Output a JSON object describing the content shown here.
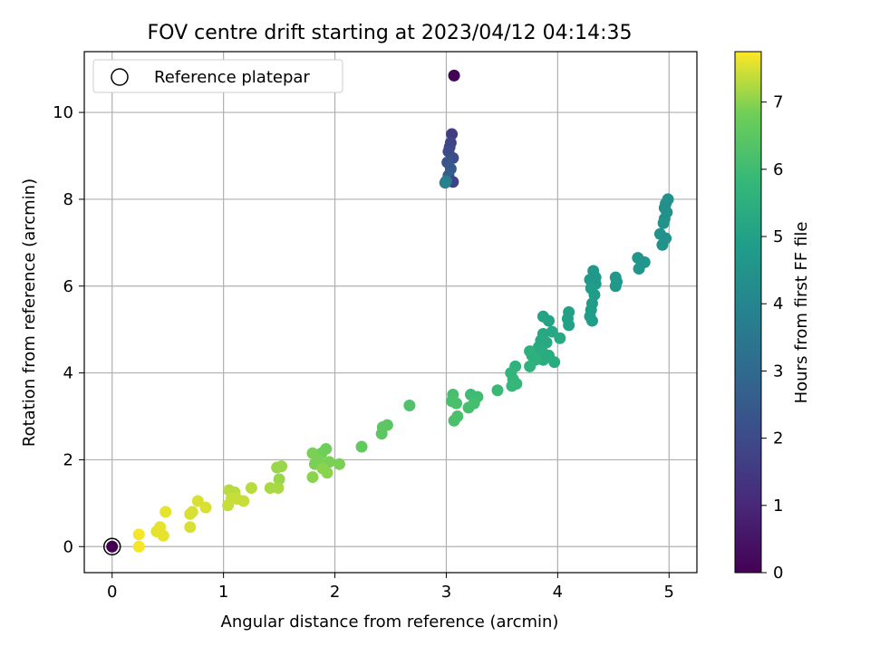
{
  "chart_data": {
    "type": "scatter",
    "title": "FOV centre drift starting at 2023/04/12 04:14:35",
    "xlabel": "Angular distance from reference (arcmin)",
    "ylabel": "Rotation from reference (arcmin)",
    "xlim": [
      -0.25,
      5.25
    ],
    "ylim": [
      -0.6,
      11.4
    ],
    "xticks": [
      0,
      1,
      2,
      3,
      4,
      5
    ],
    "yticks": [
      0,
      2,
      4,
      6,
      8,
      10
    ],
    "grid": true,
    "legend": {
      "position": "top-left",
      "entries": [
        "Reference platepar"
      ]
    },
    "colorbar": {
      "label": "Hours from first FF file",
      "min": 0,
      "max": 7.75,
      "ticks": [
        0,
        1,
        2,
        3,
        4,
        5,
        6,
        7
      ],
      "colormap": "viridis"
    },
    "reference_point": {
      "x": 0,
      "y": 0
    },
    "points": [
      {
        "x": 0,
        "y": 0,
        "t": 0.0
      },
      {
        "x": 3.07,
        "y": 10.85,
        "t": 0.1
      },
      {
        "x": 3.05,
        "y": 9.5,
        "t": 1.6
      },
      {
        "x": 3.04,
        "y": 9.3,
        "t": 1.8
      },
      {
        "x": 3.03,
        "y": 9.2,
        "t": 1.9
      },
      {
        "x": 3.02,
        "y": 9.1,
        "t": 2.0
      },
      {
        "x": 3.06,
        "y": 8.95,
        "t": 2.1
      },
      {
        "x": 3.01,
        "y": 8.85,
        "t": 2.3
      },
      {
        "x": 3.04,
        "y": 8.7,
        "t": 2.4
      },
      {
        "x": 3.02,
        "y": 8.55,
        "t": 2.6
      },
      {
        "x": 3.06,
        "y": 8.4,
        "t": 1.7
      },
      {
        "x": 3.0,
        "y": 8.42,
        "t": 3.5
      },
      {
        "x": 2.99,
        "y": 8.38,
        "t": 3.8
      },
      {
        "x": 4.99,
        "y": 8.0,
        "t": 4.4
      },
      {
        "x": 4.97,
        "y": 7.9,
        "t": 4.4
      },
      {
        "x": 4.96,
        "y": 7.8,
        "t": 4.3
      },
      {
        "x": 4.98,
        "y": 7.7,
        "t": 4.4
      },
      {
        "x": 4.96,
        "y": 7.55,
        "t": 4.4
      },
      {
        "x": 4.95,
        "y": 7.45,
        "t": 4.5
      },
      {
        "x": 4.92,
        "y": 7.2,
        "t": 4.5
      },
      {
        "x": 4.97,
        "y": 7.1,
        "t": 4.4
      },
      {
        "x": 4.94,
        "y": 6.95,
        "t": 4.5
      },
      {
        "x": 4.78,
        "y": 6.55,
        "t": 4.6
      },
      {
        "x": 4.72,
        "y": 6.65,
        "t": 4.6
      },
      {
        "x": 4.73,
        "y": 6.4,
        "t": 4.6
      },
      {
        "x": 4.52,
        "y": 6.2,
        "t": 4.7
      },
      {
        "x": 4.53,
        "y": 6.1,
        "t": 4.7
      },
      {
        "x": 4.52,
        "y": 6.0,
        "t": 4.7
      },
      {
        "x": 4.32,
        "y": 6.35,
        "t": 4.7
      },
      {
        "x": 4.34,
        "y": 6.2,
        "t": 4.7
      },
      {
        "x": 4.29,
        "y": 6.15,
        "t": 4.7
      },
      {
        "x": 4.34,
        "y": 6.05,
        "t": 4.7
      },
      {
        "x": 4.3,
        "y": 5.95,
        "t": 4.8
      },
      {
        "x": 4.33,
        "y": 5.8,
        "t": 4.8
      },
      {
        "x": 4.31,
        "y": 5.6,
        "t": 4.8
      },
      {
        "x": 4.3,
        "y": 5.45,
        "t": 4.8
      },
      {
        "x": 4.29,
        "y": 5.3,
        "t": 4.8
      },
      {
        "x": 4.31,
        "y": 5.2,
        "t": 4.9
      },
      {
        "x": 4.1,
        "y": 5.4,
        "t": 5.0
      },
      {
        "x": 4.09,
        "y": 5.25,
        "t": 5.0
      },
      {
        "x": 4.1,
        "y": 5.1,
        "t": 5.0
      },
      {
        "x": 3.87,
        "y": 5.3,
        "t": 5.1
      },
      {
        "x": 3.92,
        "y": 5.2,
        "t": 5.1
      },
      {
        "x": 3.95,
        "y": 4.95,
        "t": 5.2
      },
      {
        "x": 3.87,
        "y": 4.9,
        "t": 5.2
      },
      {
        "x": 3.85,
        "y": 4.75,
        "t": 5.3
      },
      {
        "x": 3.9,
        "y": 4.7,
        "t": 5.3
      },
      {
        "x": 4.02,
        "y": 4.8,
        "t": 5.3
      },
      {
        "x": 3.83,
        "y": 4.6,
        "t": 5.3
      },
      {
        "x": 3.86,
        "y": 4.5,
        "t": 5.4
      },
      {
        "x": 3.92,
        "y": 4.4,
        "t": 5.4
      },
      {
        "x": 3.87,
        "y": 4.3,
        "t": 5.4
      },
      {
        "x": 3.97,
        "y": 4.25,
        "t": 5.4
      },
      {
        "x": 3.75,
        "y": 4.5,
        "t": 5.5
      },
      {
        "x": 3.77,
        "y": 4.4,
        "t": 5.5
      },
      {
        "x": 3.8,
        "y": 4.3,
        "t": 5.5
      },
      {
        "x": 3.75,
        "y": 4.15,
        "t": 5.6
      },
      {
        "x": 3.62,
        "y": 4.15,
        "t": 5.6
      },
      {
        "x": 3.58,
        "y": 4.0,
        "t": 5.7
      },
      {
        "x": 3.6,
        "y": 3.85,
        "t": 5.7
      },
      {
        "x": 3.63,
        "y": 3.75,
        "t": 5.8
      },
      {
        "x": 3.59,
        "y": 3.7,
        "t": 5.8
      },
      {
        "x": 3.46,
        "y": 3.6,
        "t": 5.9
      },
      {
        "x": 3.22,
        "y": 3.5,
        "t": 6.0
      },
      {
        "x": 3.28,
        "y": 3.45,
        "t": 6.0
      },
      {
        "x": 3.25,
        "y": 3.3,
        "t": 6.1
      },
      {
        "x": 3.2,
        "y": 3.2,
        "t": 6.1
      },
      {
        "x": 3.06,
        "y": 3.5,
        "t": 6.1
      },
      {
        "x": 3.05,
        "y": 3.35,
        "t": 6.2
      },
      {
        "x": 3.09,
        "y": 3.3,
        "t": 6.2
      },
      {
        "x": 3.1,
        "y": 3.0,
        "t": 6.2
      },
      {
        "x": 3.07,
        "y": 2.9,
        "t": 6.2
      },
      {
        "x": 2.67,
        "y": 3.25,
        "t": 6.3
      },
      {
        "x": 2.47,
        "y": 2.8,
        "t": 6.5
      },
      {
        "x": 2.43,
        "y": 2.75,
        "t": 6.5
      },
      {
        "x": 2.42,
        "y": 2.6,
        "t": 6.5
      },
      {
        "x": 2.24,
        "y": 2.3,
        "t": 6.6
      },
      {
        "x": 1.92,
        "y": 2.25,
        "t": 6.8
      },
      {
        "x": 1.88,
        "y": 2.15,
        "t": 6.8
      },
      {
        "x": 1.8,
        "y": 2.15,
        "t": 6.9
      },
      {
        "x": 1.85,
        "y": 2.0,
        "t": 6.9
      },
      {
        "x": 1.95,
        "y": 1.95,
        "t": 6.9
      },
      {
        "x": 1.82,
        "y": 1.9,
        "t": 6.9
      },
      {
        "x": 2.04,
        "y": 1.9,
        "t": 6.9
      },
      {
        "x": 1.89,
        "y": 1.8,
        "t": 7.0
      },
      {
        "x": 1.93,
        "y": 1.7,
        "t": 7.0
      },
      {
        "x": 1.8,
        "y": 1.6,
        "t": 7.0
      },
      {
        "x": 1.52,
        "y": 1.85,
        "t": 7.1
      },
      {
        "x": 1.48,
        "y": 1.82,
        "t": 7.1
      },
      {
        "x": 1.5,
        "y": 1.55,
        "t": 7.1
      },
      {
        "x": 1.42,
        "y": 1.35,
        "t": 7.2
      },
      {
        "x": 1.49,
        "y": 1.35,
        "t": 7.2
      },
      {
        "x": 1.25,
        "y": 1.35,
        "t": 7.3
      },
      {
        "x": 1.05,
        "y": 1.3,
        "t": 7.3
      },
      {
        "x": 1.1,
        "y": 1.25,
        "t": 7.3
      },
      {
        "x": 1.18,
        "y": 1.05,
        "t": 7.4
      },
      {
        "x": 1.07,
        "y": 1.1,
        "t": 7.4
      },
      {
        "x": 1.12,
        "y": 1.1,
        "t": 7.4
      },
      {
        "x": 1.04,
        "y": 0.95,
        "t": 7.4
      },
      {
        "x": 0.77,
        "y": 1.05,
        "t": 7.5
      },
      {
        "x": 0.84,
        "y": 0.9,
        "t": 7.5
      },
      {
        "x": 0.72,
        "y": 0.8,
        "t": 7.5
      },
      {
        "x": 0.7,
        "y": 0.75,
        "t": 7.5
      },
      {
        "x": 0.7,
        "y": 0.45,
        "t": 7.5
      },
      {
        "x": 0.48,
        "y": 0.8,
        "t": 7.6
      },
      {
        "x": 0.43,
        "y": 0.45,
        "t": 7.6
      },
      {
        "x": 0.4,
        "y": 0.35,
        "t": 7.6
      },
      {
        "x": 0.46,
        "y": 0.25,
        "t": 7.6
      },
      {
        "x": 0.24,
        "y": 0.28,
        "t": 7.7
      },
      {
        "x": 0.24,
        "y": 0.0,
        "t": 7.7
      }
    ]
  }
}
